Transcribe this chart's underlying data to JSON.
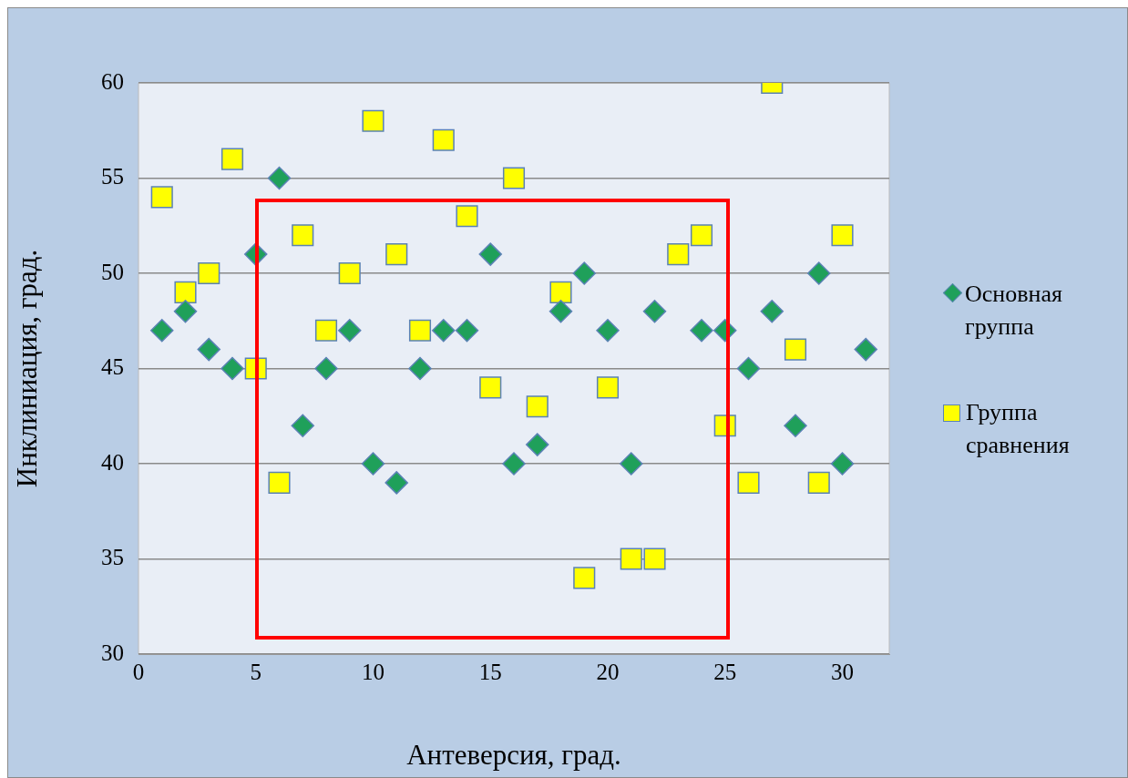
{
  "chart_data": {
    "type": "scatter",
    "xlabel": "Антеверсия, град.",
    "ylabel": "Инклиниация, град.",
    "x": [
      1,
      2,
      3,
      4,
      5,
      6,
      7,
      8,
      9,
      10,
      11,
      12,
      13,
      14,
      15,
      16,
      17,
      18,
      19,
      20,
      21,
      22,
      23,
      24,
      25,
      26,
      27,
      28,
      29,
      30,
      31
    ],
    "series": [
      {
        "name": "Основная группа",
        "color": "#1fa05a",
        "marker": "diamond",
        "values": [
          47,
          48,
          46,
          45,
          51,
          55,
          42,
          45,
          47,
          40,
          39,
          45,
          47,
          47,
          51,
          40,
          41,
          48,
          50,
          47,
          40,
          48,
          null,
          47,
          47,
          45,
          48,
          42,
          50,
          40,
          46
        ]
      },
      {
        "name": "Группа сравнения",
        "color": "#ffff00",
        "marker": "square",
        "values": [
          54,
          49,
          50,
          56,
          45,
          39,
          52,
          47,
          50,
          58,
          51,
          47,
          57,
          53,
          44,
          55,
          43,
          49,
          34,
          44,
          35,
          35,
          51,
          52,
          42,
          39,
          60,
          46,
          39,
          52,
          null
        ]
      }
    ],
    "xlim": [
      0,
      32
    ],
    "xticks": [
      0,
      5,
      10,
      15,
      20,
      25,
      30
    ],
    "ylim": [
      30,
      60
    ],
    "yticks": [
      30,
      35,
      40,
      45,
      50,
      55,
      60
    ],
    "grid": "y",
    "legend": "right"
  }
}
